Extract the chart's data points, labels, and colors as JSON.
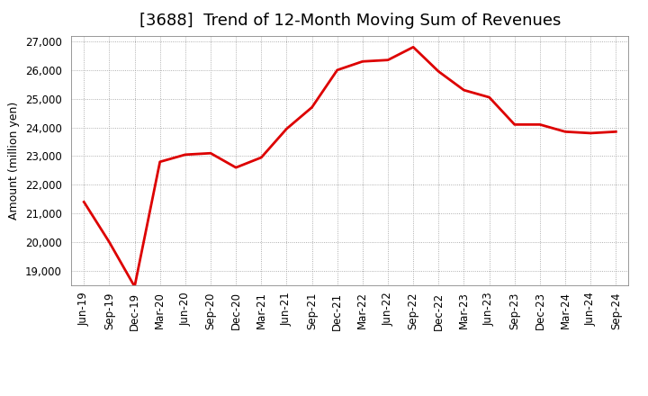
{
  "title": "[3688]  Trend of 12-Month Moving Sum of Revenues",
  "ylabel": "Amount (million yen)",
  "line_color": "#dd0000",
  "background_color": "#ffffff",
  "grid_color": "#999999",
  "x_labels": [
    "Jun-19",
    "Sep-19",
    "Dec-19",
    "Mar-20",
    "Jun-20",
    "Sep-20",
    "Dec-20",
    "Mar-21",
    "Jun-21",
    "Sep-21",
    "Dec-21",
    "Mar-22",
    "Jun-22",
    "Sep-22",
    "Dec-22",
    "Mar-23",
    "Jun-23",
    "Sep-23",
    "Dec-23",
    "Mar-24",
    "Jun-24",
    "Sep-24"
  ],
  "values": [
    21400,
    20000,
    18450,
    22800,
    23050,
    23100,
    22600,
    22950,
    23950,
    24700,
    26000,
    26300,
    26350,
    26800,
    25950,
    25300,
    25050,
    24100,
    24100,
    23850,
    23800,
    23850
  ],
  "ylim": [
    18500,
    27200
  ],
  "yticks": [
    19000,
    20000,
    21000,
    22000,
    23000,
    24000,
    25000,
    26000,
    27000
  ],
  "line_width": 2.0,
  "title_fontsize": 13,
  "ylabel_fontsize": 9,
  "tick_fontsize": 8.5
}
